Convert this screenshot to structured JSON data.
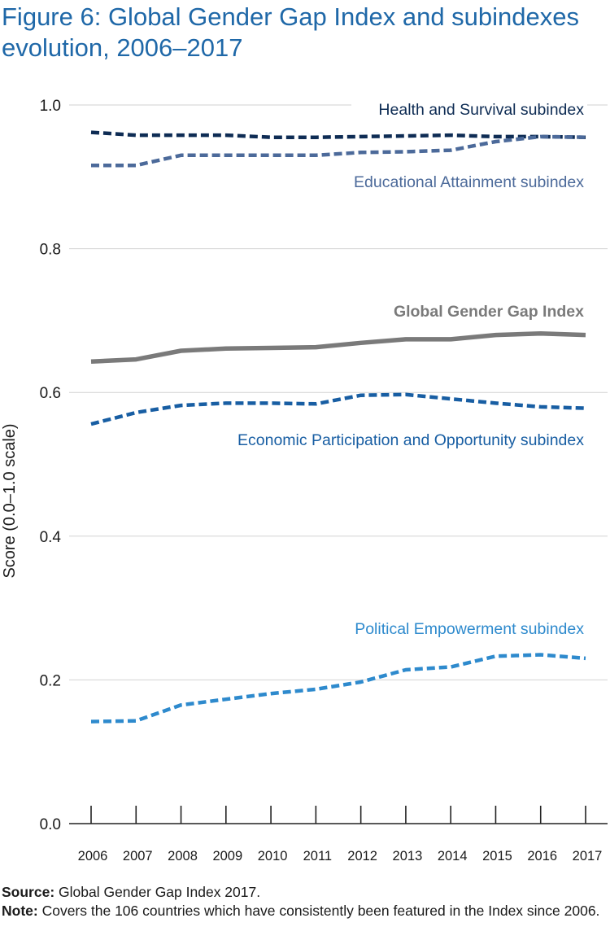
{
  "title": "Figure 6: Global Gender Gap Index and subindexes evolution, 2006–2017",
  "colors": {
    "health": "#0e2c54",
    "education": "#4c6a9a",
    "index": "#7a7a7a",
    "economic": "#185ea3",
    "political": "#2e8acd",
    "title": "#1f68a8"
  },
  "chart_data": {
    "type": "line",
    "title": "Figure 6: Global Gender Gap Index and subindexes evolution, 2006–2017",
    "xlabel": "",
    "ylabel": "Score (0.0–1.0 scale)",
    "x": [
      "2006",
      "2007",
      "2008",
      "2009",
      "2010",
      "2011",
      "2012",
      "2013",
      "2014",
      "2015",
      "2016",
      "2017"
    ],
    "ylim": [
      0.0,
      1.0
    ],
    "yticks": [
      "0.0",
      "0.2",
      "0.4",
      "0.6",
      "0.8",
      "1.0"
    ],
    "ytick_values": [
      0.0,
      0.2,
      0.4,
      0.6,
      0.8,
      1.0
    ],
    "grid": true,
    "series": [
      {
        "key": "health",
        "name": "Health and Survival subindex",
        "style": "dashed",
        "values": [
          0.962,
          0.958,
          0.958,
          0.958,
          0.955,
          0.955,
          0.956,
          0.957,
          0.958,
          0.956,
          0.956,
          0.955
        ]
      },
      {
        "key": "education",
        "name": "Educational Attainment subindex",
        "style": "dashed",
        "values": [
          0.916,
          0.916,
          0.93,
          0.93,
          0.93,
          0.93,
          0.934,
          0.935,
          0.937,
          0.949,
          0.956,
          0.955
        ]
      },
      {
        "key": "index",
        "name": "Global Gender Gap Index",
        "style": "solid",
        "values": [
          0.643,
          0.646,
          0.658,
          0.661,
          0.662,
          0.663,
          0.669,
          0.674,
          0.674,
          0.68,
          0.682,
          0.68
        ]
      },
      {
        "key": "economic",
        "name": "Economic Participation and Opportunity subindex",
        "style": "dashed",
        "values": [
          0.556,
          0.572,
          0.582,
          0.585,
          0.585,
          0.584,
          0.596,
          0.597,
          0.591,
          0.585,
          0.58,
          0.578
        ]
      },
      {
        "key": "political",
        "name": "Political Empowerment subindex",
        "style": "dashed",
        "values": [
          0.142,
          0.143,
          0.165,
          0.173,
          0.181,
          0.187,
          0.197,
          0.214,
          0.218,
          0.233,
          0.235,
          0.23
        ]
      }
    ]
  },
  "footer": {
    "source_label": "Source:",
    "source_text": " Global Gender Gap Index 2017.",
    "note_label": "Note:",
    "note_text": " Covers the 106 countries which have consistently been featured in the Index since 2006."
  }
}
